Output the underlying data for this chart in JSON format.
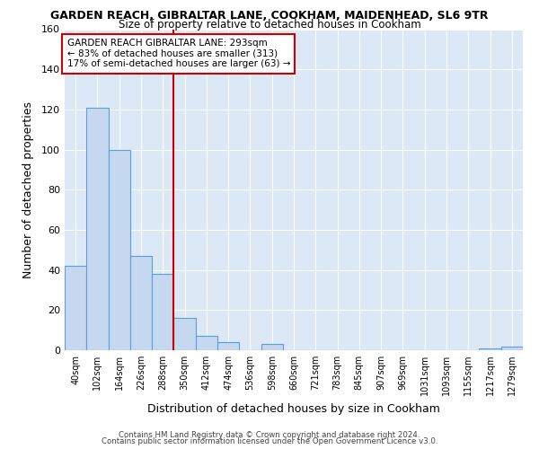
{
  "title": "GARDEN REACH, GIBRALTAR LANE, COOKHAM, MAIDENHEAD, SL6 9TR",
  "subtitle": "Size of property relative to detached houses in Cookham",
  "xlabel": "Distribution of detached houses by size in Cookham",
  "ylabel": "Number of detached properties",
  "bar_labels": [
    "40sqm",
    "102sqm",
    "164sqm",
    "226sqm",
    "288sqm",
    "350sqm",
    "412sqm",
    "474sqm",
    "536sqm",
    "598sqm",
    "660sqm",
    "721sqm",
    "783sqm",
    "845sqm",
    "907sqm",
    "969sqm",
    "1031sqm",
    "1093sqm",
    "1155sqm",
    "1217sqm",
    "1279sqm"
  ],
  "bar_heights": [
    42,
    121,
    100,
    47,
    38,
    16,
    7,
    4,
    0,
    3,
    0,
    0,
    0,
    0,
    0,
    0,
    0,
    0,
    0,
    1,
    2
  ],
  "bar_color": "#c5d8f0",
  "bar_edge_color": "#5a9fd4",
  "vline_color": "#cc0000",
  "annotation_title": "GARDEN REACH GIBRALTAR LANE: 293sqm",
  "annotation_line1": "← 83% of detached houses are smaller (313)",
  "annotation_line2": "17% of semi-detached houses are larger (63) →",
  "annotation_box_color": "#ffffff",
  "annotation_box_edge": "#cc0000",
  "ylim": [
    0,
    160
  ],
  "yticks": [
    0,
    20,
    40,
    60,
    80,
    100,
    120,
    140,
    160
  ],
  "bg_color": "#dce8f5",
  "fig_bg_color": "#ffffff",
  "footer_line1": "Contains HM Land Registry data © Crown copyright and database right 2024.",
  "footer_line2": "Contains public sector information licensed under the Open Government Licence v3.0."
}
